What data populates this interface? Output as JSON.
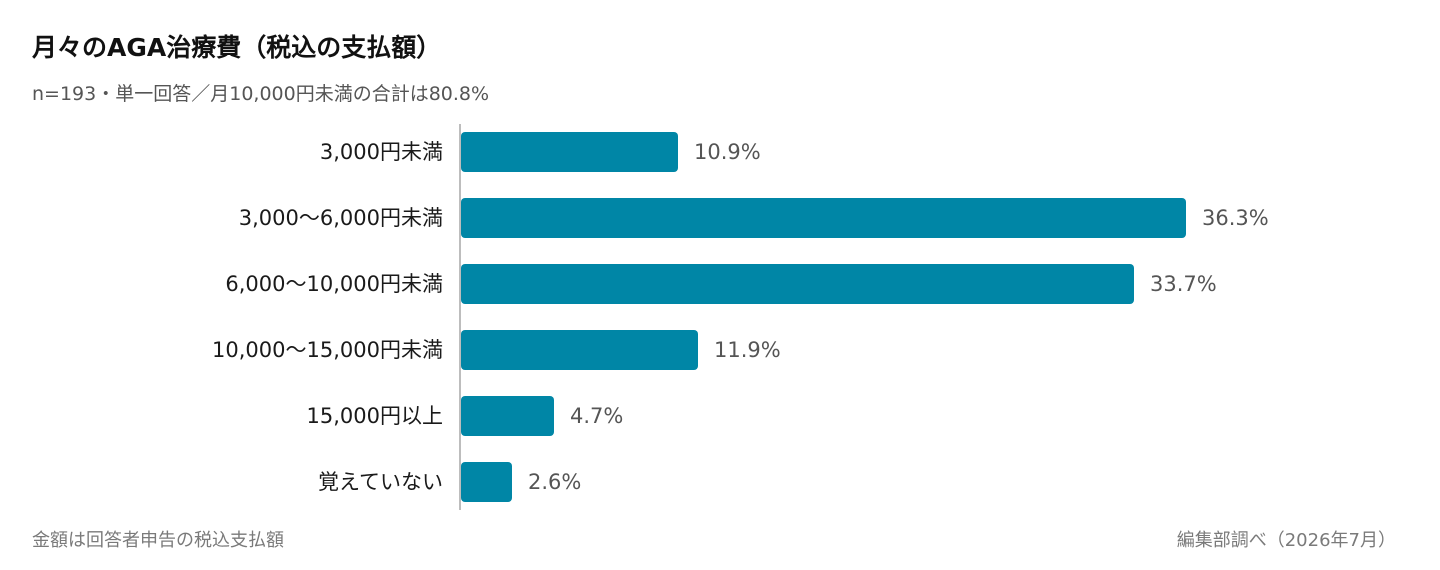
{
  "title": "月々のAGA治療費（税込の支払額）",
  "subtitle": "n=193・単一回答／月10,000円未満の合計は80.8%",
  "footer": {
    "note": "金額は回答者申告の税込支払額",
    "source": "編集部調べ（2026年7月）"
  },
  "colors": {
    "bar": "#0086a6",
    "axis": "#bdbdbd",
    "category_text": "#1a1a1a",
    "value_text": "#555555"
  },
  "chart_data": {
    "type": "bar",
    "orientation": "horizontal",
    "categories": [
      "3,000円未満",
      "3,000〜6,000円未満",
      "6,000〜10,000円未満",
      "10,000〜15,000円未満",
      "15,000円以上",
      "覚えていない"
    ],
    "values": [
      10.9,
      36.3,
      33.7,
      11.9,
      4.7,
      2.6
    ],
    "value_labels": [
      "10.9%",
      "36.3%",
      "33.7%",
      "11.9%",
      "4.7%",
      "2.6%"
    ],
    "unit": "%",
    "xlim": [
      0,
      36.3
    ],
    "grid": false,
    "legend": "none"
  }
}
